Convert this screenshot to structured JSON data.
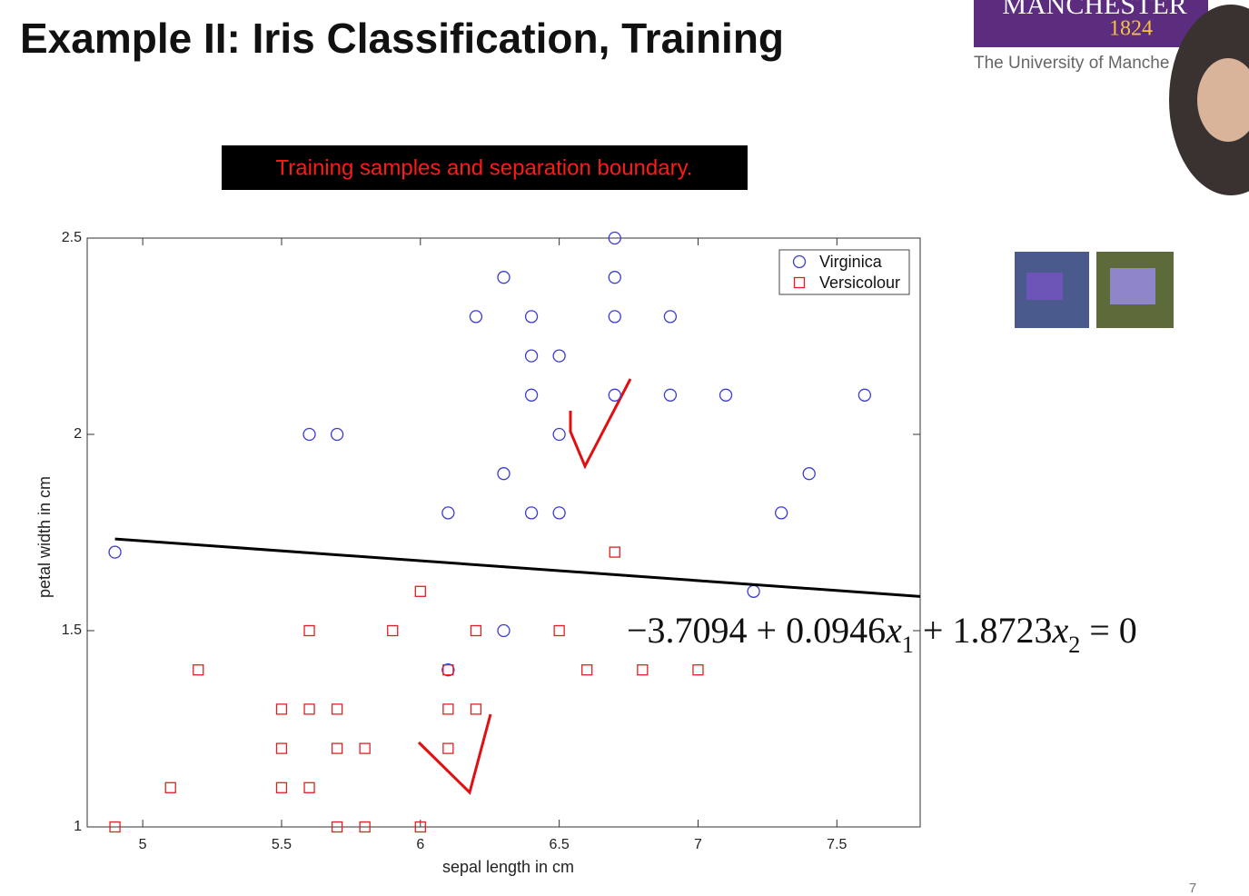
{
  "slide": {
    "title": "Example II: Iris Classification, Training",
    "banner": "Training samples and separation boundary.",
    "logo_name": "MANCHESTER",
    "logo_year": "1824",
    "logo_caption": "The University of Manche",
    "page_number": "7"
  },
  "chart_data": {
    "type": "scatter",
    "xlabel": "sepal length in cm",
    "ylabel": "petal width in cm",
    "xlim": [
      4.8,
      7.8
    ],
    "ylim": [
      1,
      2.5
    ],
    "xticks": [
      5,
      5.5,
      6,
      6.5,
      7,
      7.5
    ],
    "yticks": [
      1,
      1.5,
      2,
      2.5
    ],
    "legend": "upper right",
    "series": [
      {
        "name": "Virginica",
        "color": "#3b3bd6",
        "marker": "circle",
        "x": [
          4.9,
          6.3,
          6.7,
          6.7,
          6.2,
          6.4,
          6.7,
          6.9,
          6.4,
          6.5,
          6.4,
          6.7,
          6.9,
          7.1,
          7.6,
          5.6,
          5.7,
          6.5,
          6.3,
          7.4,
          6.1,
          6.4,
          6.5,
          7.3,
          7.2,
          6.3,
          6.1
        ],
        "values": [
          1.7,
          2.4,
          2.5,
          2.4,
          2.3,
          2.3,
          2.3,
          2.3,
          2.2,
          2.2,
          2.1,
          2.1,
          2.1,
          2.1,
          2.1,
          2.0,
          2.0,
          2.0,
          1.9,
          1.9,
          1.8,
          1.8,
          1.8,
          1.8,
          1.6,
          1.5,
          1.4
        ]
      },
      {
        "name": "Versicolour",
        "color": "#e02020",
        "marker": "square",
        "x": [
          6.7,
          6.0,
          5.6,
          5.9,
          6.2,
          6.5,
          5.2,
          6.1,
          6.6,
          6.8,
          7.0,
          5.5,
          5.6,
          5.7,
          6.1,
          6.2,
          5.5,
          5.7,
          5.8,
          6.1,
          5.1,
          5.5,
          5.6,
          4.9,
          5.7,
          5.8,
          6.0
        ],
        "values": [
          1.7,
          1.6,
          1.5,
          1.5,
          1.5,
          1.5,
          1.4,
          1.4,
          1.4,
          1.4,
          1.4,
          1.3,
          1.3,
          1.3,
          1.3,
          1.3,
          1.2,
          1.2,
          1.2,
          1.2,
          1.1,
          1.1,
          1.1,
          1.0,
          1.0,
          1.0,
          1.0
        ]
      }
    ],
    "boundary": {
      "x": [
        4.9,
        7.8
      ],
      "values": [
        1.7336,
        1.587
      ],
      "color": "#000000"
    },
    "equation": [
      "−3.7094 + 0.0946",
      "x",
      "1",
      " + 1.8723",
      "x",
      "2",
      " = 0"
    ]
  }
}
